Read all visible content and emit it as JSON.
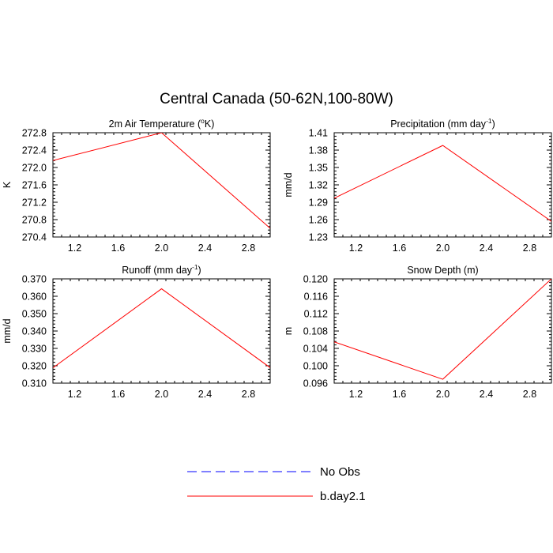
{
  "figure": {
    "title": "Central Canada (50-62N,100-80W)"
  },
  "legend": {
    "items": [
      {
        "label": "No Obs",
        "color": "#0000ff",
        "style": "dashed"
      },
      {
        "label": "b.day2.1",
        "color": "#ff0000",
        "style": "solid"
      }
    ]
  },
  "chart_data": [
    {
      "type": "line",
      "title_parts": [
        "2m Air Temperature (",
        "o",
        "K)"
      ],
      "ylabel": "K",
      "xlim": [
        1,
        3
      ],
      "ylim": [
        270.4,
        272.8
      ],
      "xticks": [
        1.2,
        1.6,
        2.0,
        2.4,
        2.8
      ],
      "xtick_labels": [
        "1.2",
        "1.6",
        "2.0",
        "2.4",
        "2.8"
      ],
      "yticks": [
        270.4,
        270.8,
        271.2,
        271.6,
        272.0,
        272.4,
        272.8
      ],
      "ytick_labels": [
        "270.4",
        "270.8",
        "271.2",
        "271.6",
        "272.0",
        "272.4",
        "272.8"
      ],
      "y_minor_step": 0.08,
      "x": [
        1,
        2,
        3
      ],
      "series": [
        {
          "name": "b.day2.1",
          "color": "#ff0000",
          "values": [
            272.16,
            272.8,
            270.6
          ]
        }
      ]
    },
    {
      "type": "line",
      "title_parts": [
        "Precipitation (mm day",
        "-1",
        ")"
      ],
      "ylabel": "mm/d",
      "xlim": [
        1,
        3
      ],
      "ylim": [
        1.23,
        1.41
      ],
      "xticks": [
        1.2,
        1.6,
        2.0,
        2.4,
        2.8
      ],
      "xtick_labels": [
        "1.2",
        "1.6",
        "2.0",
        "2.4",
        "2.8"
      ],
      "yticks": [
        1.23,
        1.26,
        1.29,
        1.32,
        1.35,
        1.38,
        1.41
      ],
      "ytick_labels": [
        "1.23",
        "1.26",
        "1.29",
        "1.32",
        "1.35",
        "1.38",
        "1.41"
      ],
      "y_minor_step": 0.006,
      "x": [
        1,
        2,
        3
      ],
      "series": [
        {
          "name": "b.day2.1",
          "color": "#ff0000",
          "values": [
            1.297,
            1.388,
            1.257
          ]
        }
      ]
    },
    {
      "type": "line",
      "title_parts": [
        "Runoff (mm day",
        "-1",
        ")"
      ],
      "ylabel": "mm/d",
      "xlim": [
        1,
        3
      ],
      "ylim": [
        0.31,
        0.37
      ],
      "xticks": [
        1.2,
        1.6,
        2.0,
        2.4,
        2.8
      ],
      "xtick_labels": [
        "1.2",
        "1.6",
        "2.0",
        "2.4",
        "2.8"
      ],
      "yticks": [
        0.31,
        0.32,
        0.33,
        0.34,
        0.35,
        0.36,
        0.37
      ],
      "ytick_labels": [
        "0.310",
        "0.320",
        "0.330",
        "0.340",
        "0.350",
        "0.360",
        "0.370"
      ],
      "y_minor_step": 0.002,
      "x": [
        1,
        2,
        3
      ],
      "series": [
        {
          "name": "b.day2.1",
          "color": "#ff0000",
          "values": [
            0.3188,
            0.3643,
            0.3189
          ]
        }
      ]
    },
    {
      "type": "line",
      "title_parts": [
        "Snow Depth (m)"
      ],
      "ylabel": "m",
      "xlim": [
        1,
        3
      ],
      "ylim": [
        0.096,
        0.12
      ],
      "xticks": [
        1.2,
        1.6,
        2.0,
        2.4,
        2.8
      ],
      "xtick_labels": [
        "1.2",
        "1.6",
        "2.0",
        "2.4",
        "2.8"
      ],
      "yticks": [
        0.096,
        0.1,
        0.104,
        0.108,
        0.112,
        0.116,
        0.12
      ],
      "ytick_labels": [
        "0.096",
        "0.100",
        "0.104",
        "0.108",
        "0.112",
        "0.116",
        "0.120"
      ],
      "y_minor_step": 0.0008,
      "x": [
        1,
        2,
        3
      ],
      "series": [
        {
          "name": "b.day2.1",
          "color": "#ff0000",
          "values": [
            0.1055,
            0.0969,
            0.12
          ]
        }
      ]
    }
  ]
}
